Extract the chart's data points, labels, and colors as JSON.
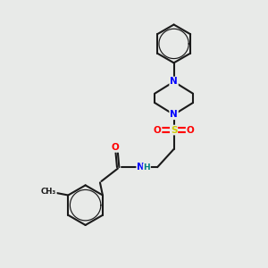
{
  "bg_color": "#e8eae8",
  "bond_color": "#1a1a1a",
  "bond_width": 1.5,
  "atom_colors": {
    "N": "#0000ff",
    "O": "#ff0000",
    "S": "#cccc00",
    "H": "#008080",
    "C": "#1a1a1a"
  },
  "xlim": [
    0,
    10
  ],
  "ylim": [
    0,
    10
  ]
}
